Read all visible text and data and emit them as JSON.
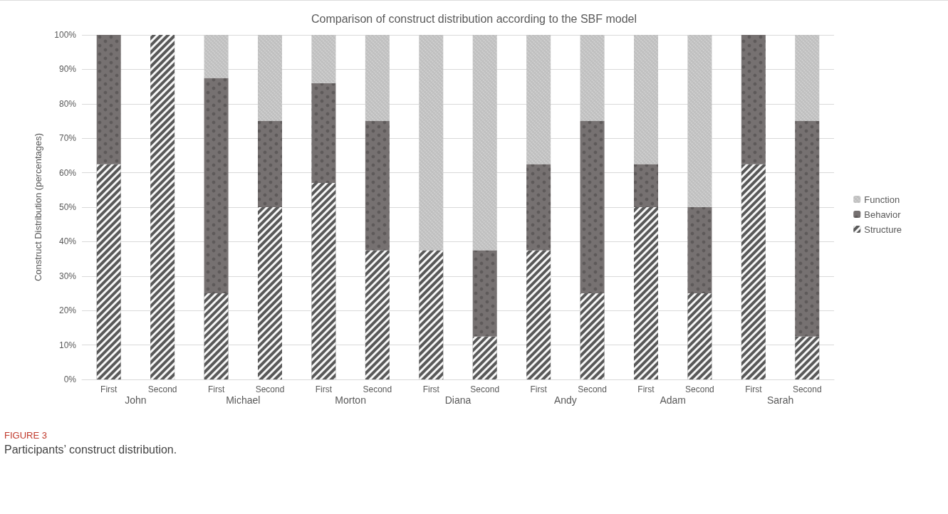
{
  "chart_data": {
    "type": "bar",
    "title": "Comparison of construct distribution according to the SBF model",
    "ylabel": "Construct Distribution (percentages)",
    "categories": [
      "First",
      "Second",
      "First",
      "Second",
      "First",
      "Second",
      "First",
      "Second",
      "First",
      "Second",
      "First",
      "Second",
      "First",
      "Second"
    ],
    "stacked": true,
    "series": [
      {
        "name": "Structure",
        "color": "#595959",
        "values": [
          62.5,
          100,
          25,
          50,
          57,
          37.5,
          37.5,
          12.5,
          37.5,
          25,
          50,
          25,
          62.5,
          12.5
        ]
      },
      {
        "name": "Behavior",
        "color": "#767171",
        "values": [
          37.5,
          0,
          62.5,
          25,
          29,
          37.5,
          0,
          25,
          25,
          50,
          12.5,
          25,
          37.5,
          62.5
        ]
      },
      {
        "name": "Function",
        "color": "#bfbfbf",
        "values": [
          0,
          0,
          12.5,
          25,
          14,
          25,
          62.5,
          62.5,
          37.5,
          25,
          37.5,
          50,
          0,
          25
        ]
      }
    ],
    "ylim": [
      0,
      100
    ],
    "yticks": [
      {
        "value": 0,
        "label": "0%"
      },
      {
        "value": 10,
        "label": "10%"
      },
      {
        "value": 20,
        "label": "20%"
      },
      {
        "value": 30,
        "label": "30%"
      },
      {
        "value": 40,
        "label": "40%"
      },
      {
        "value": 50,
        "label": "50%"
      },
      {
        "value": 60,
        "label": "60%"
      },
      {
        "value": 70,
        "label": "70%"
      },
      {
        "value": 80,
        "label": "80%"
      },
      {
        "value": 90,
        "label": "90%"
      },
      {
        "value": 100,
        "label": "100%"
      }
    ],
    "grid": "y",
    "legend": "right",
    "annotations": [
      "John",
      "Michael",
      "Morton",
      "Diana",
      "Andy",
      "Adam",
      "Sarah",
      "FIGURE 3",
      "Participants’ construct distribution."
    ]
  }
}
